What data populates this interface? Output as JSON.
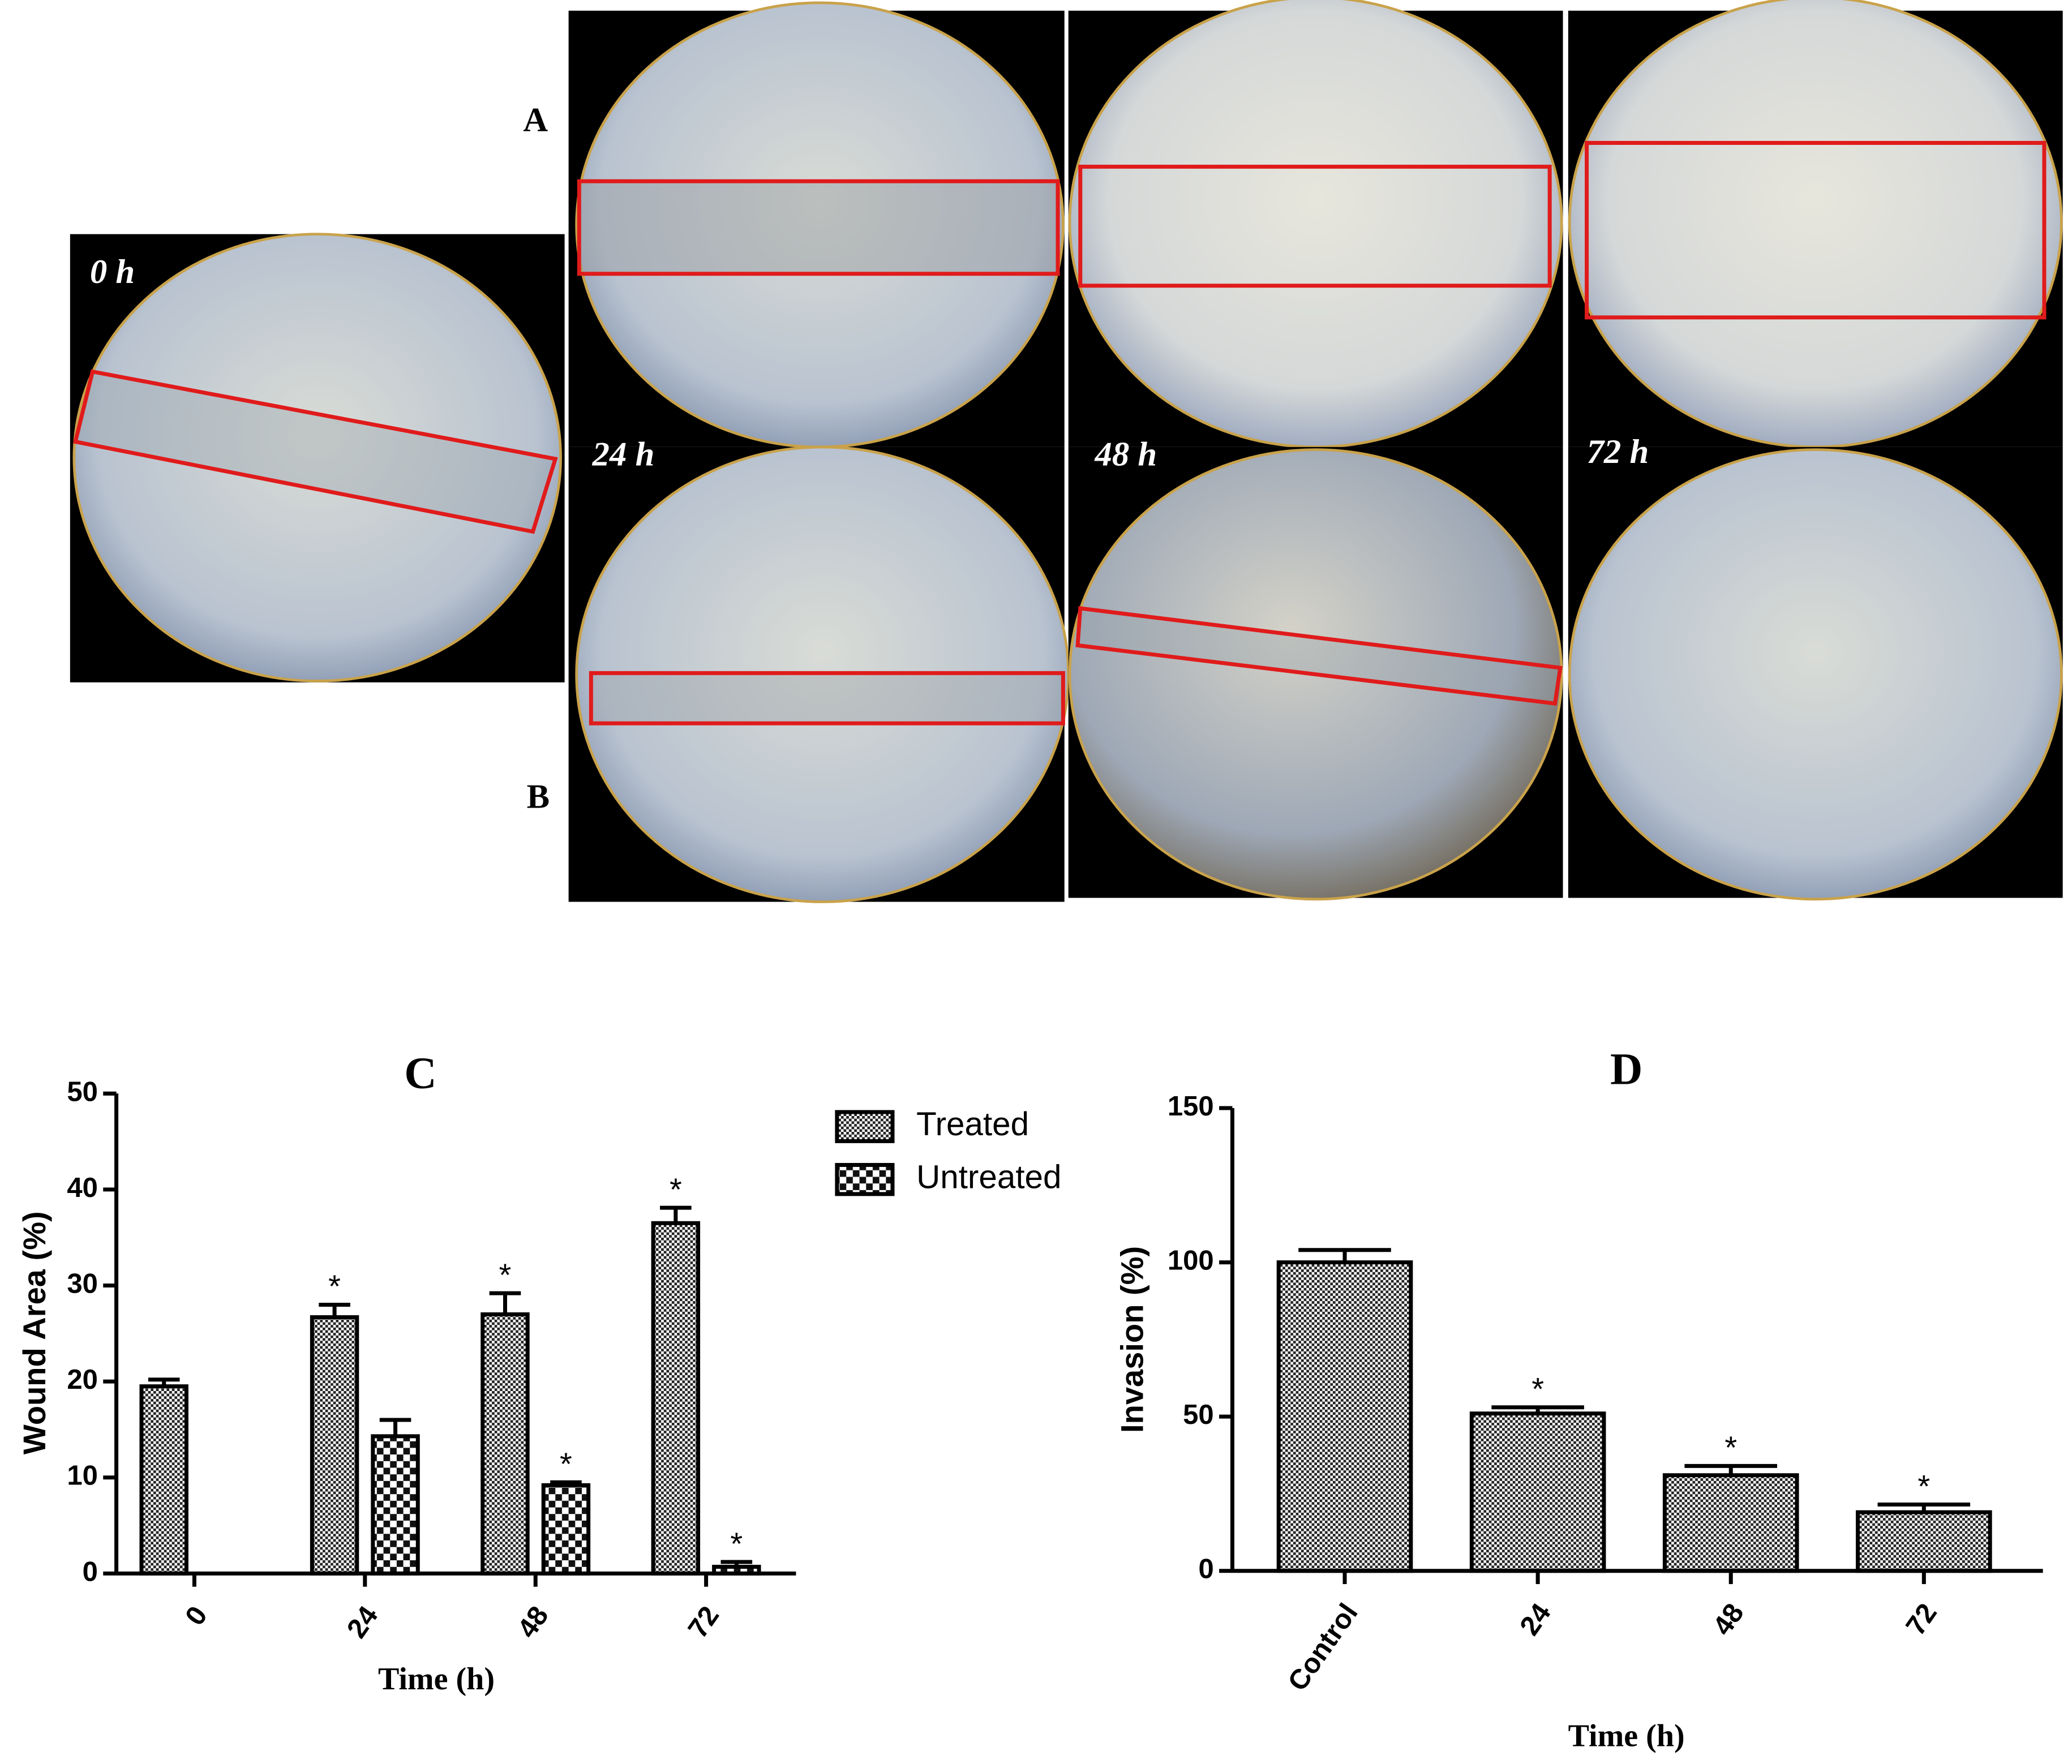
{
  "image_panels": {
    "row_labels": [
      "A",
      "B"
    ],
    "time_labels": [
      "0 h",
      "24 h",
      "48 h",
      "72 h"
    ]
  },
  "chart_data": [
    {
      "type": "bar",
      "title": "C",
      "x_label": "Time (h)",
      "y_label": "Wound Area (%)",
      "categories": [
        "0",
        "24",
        "48",
        "72"
      ],
      "series": [
        {
          "name": "Treated",
          "pattern": "fine",
          "values": [
            19.5,
            26.7,
            27,
            36.5
          ],
          "errors": [
            0.7,
            1.3,
            2.2,
            1.6
          ],
          "markers": [
            null,
            "*",
            "*",
            "*"
          ]
        },
        {
          "name": "Untreated",
          "pattern": "coarse",
          "values": [
            null,
            14.3,
            9.2,
            0.7
          ],
          "errors": [
            null,
            1.7,
            0.3,
            0.5
          ],
          "markers": [
            null,
            null,
            "*",
            "*"
          ]
        }
      ],
      "ylim": [
        0,
        50
      ],
      "yticks": [
        0,
        10,
        20,
        30,
        40,
        50
      ],
      "legend": "upper right"
    },
    {
      "type": "bar",
      "title": "D",
      "x_label": "Time (h)",
      "y_label": "Invasion (%)",
      "categories": [
        "Control",
        "24",
        "48",
        "72"
      ],
      "values": [
        100,
        51,
        31,
        19
      ],
      "errors": [
        4,
        2,
        3,
        2.5
      ],
      "markers": [
        null,
        "*",
        "*",
        "*"
      ],
      "pattern": "fine",
      "ylim": [
        0,
        150
      ],
      "yticks": [
        0,
        50,
        100,
        150
      ]
    }
  ]
}
